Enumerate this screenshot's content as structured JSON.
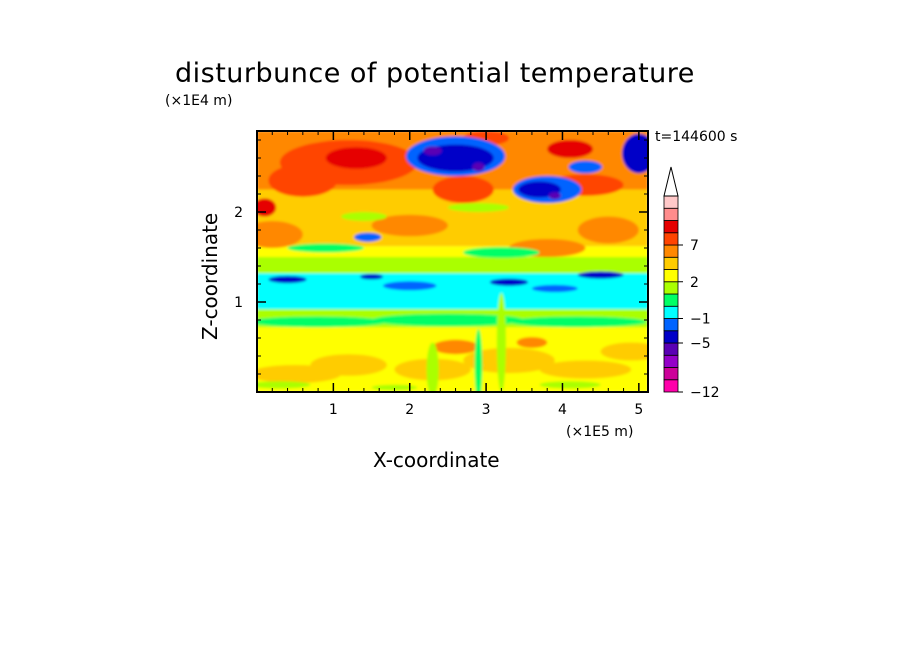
{
  "chart_data": {
    "type": "heatmap",
    "title": "disturbunce of potential temperature",
    "xlabel": "X-coordinate",
    "ylabel": "Z-coordinate",
    "x_unit": "(×1E5 m)",
    "y_unit": "(×1E4 m)",
    "annotation": "t=144600 s",
    "xlim": [
      0,
      5.12
    ],
    "ylim": [
      0,
      2.9
    ],
    "xticks": [
      "1",
      "2",
      "3",
      "4",
      "5"
    ],
    "yticks": [
      "1",
      "2"
    ],
    "colorbar": {
      "levels": [
        -12,
        -11,
        -9,
        -7,
        -5,
        -3,
        -1,
        0,
        1,
        2,
        3,
        5,
        7,
        9,
        11
      ],
      "tick_labels": [
        "−12",
        "−5",
        "−1",
        "2",
        "7"
      ],
      "colors": [
        "#ff00aa",
        "#cc0099",
        "#9400c8",
        "#5a00b4",
        "#0000c8",
        "#0064ff",
        "#00ffff",
        "#00ff66",
        "#aaff00",
        "#ffff00",
        "#ffcc00",
        "#ff8800",
        "#ff4400",
        "#e60000",
        "#ff8c8c",
        "#ffc8c8"
      ],
      "extend": "max"
    },
    "layers": [
      {
        "z": [
          0.0,
          0.3
        ],
        "dominant": "2 to 3",
        "note": "yellow/orange patches near ground"
      },
      {
        "z": [
          0.3,
          0.7
        ],
        "dominant": "2 to 3"
      },
      {
        "z": [
          0.7,
          0.9
        ],
        "dominant": "0 to 1"
      },
      {
        "z": [
          0.9,
          1.3
        ],
        "dominant": "-1 to 0",
        "note": "cyan band"
      },
      {
        "z": [
          1.3,
          1.6
        ],
        "dominant": "1 to 2"
      },
      {
        "z": [
          1.6,
          2.2
        ],
        "dominant": "3 to 5"
      },
      {
        "z": [
          2.2,
          2.9
        ],
        "dominant": "5 to 7",
        "note": "negative cores -5 to -9 near x=2–3 and x=3.3–4"
      }
    ]
  }
}
